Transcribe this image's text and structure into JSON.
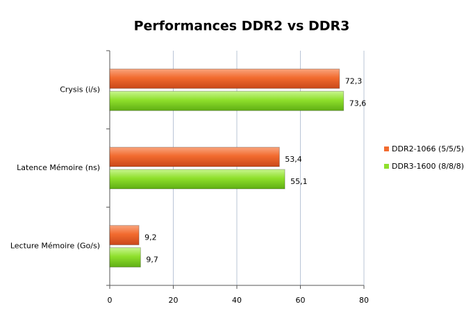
{
  "chart_data": {
    "type": "bar",
    "orientation": "horizontal",
    "title": "Performances DDR2 vs DDR3",
    "categories": [
      "Crysis (i/s)",
      "Latence Mémoire (ns)",
      "Lecture Mémoire (Go/s)"
    ],
    "series": [
      {
        "name": "DDR2-1066 (5/5/5)",
        "color": "#f26b2f",
        "values": [
          72.3,
          53.4,
          9.2
        ],
        "value_labels": [
          "72,3",
          "53,4",
          "9,2"
        ]
      },
      {
        "name": "DDR3-1600 (8/8/8)",
        "color": "#8fe02c",
        "values": [
          73.6,
          55.1,
          9.7
        ],
        "value_labels": [
          "73,6",
          "55,1",
          "9,7"
        ]
      }
    ],
    "xlim": [
      0,
      80
    ],
    "xticks": [
      0,
      20,
      40,
      60,
      80
    ],
    "grid": true,
    "legend": "right"
  }
}
